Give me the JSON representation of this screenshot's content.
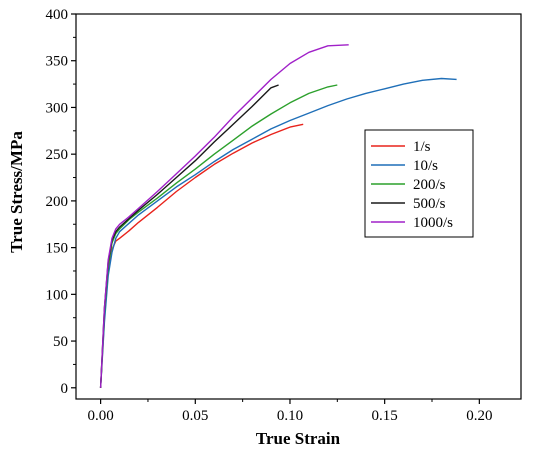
{
  "chart_data": {
    "type": "line",
    "xlabel": "True Strain",
    "ylabel": "True Stress/MPa",
    "xlim": [
      -0.013,
      0.222
    ],
    "ylim": [
      -12,
      400
    ],
    "xticks": [
      0.0,
      0.05,
      0.1,
      0.15,
      0.2
    ],
    "xtick_labels": [
      "0.00",
      "0.05",
      "0.10",
      "0.15",
      "0.20"
    ],
    "yticks": [
      0,
      50,
      100,
      150,
      200,
      250,
      300,
      350,
      400
    ],
    "ytick_labels": [
      "0",
      "50",
      "100",
      "150",
      "200",
      "250",
      "300",
      "350",
      "400"
    ],
    "grid": false,
    "legend_position": "right",
    "series": [
      {
        "name": "1/s",
        "color": "#e8231c",
        "x": [
          0.0,
          0.002,
          0.004,
          0.006,
          0.008,
          0.01,
          0.015,
          0.02,
          0.03,
          0.04,
          0.05,
          0.06,
          0.07,
          0.08,
          0.09,
          0.1,
          0.107
        ],
        "y": [
          0,
          75,
          125,
          148,
          157,
          160,
          168,
          177,
          193,
          210,
          225,
          239,
          251,
          262,
          271,
          279,
          282
        ]
      },
      {
        "name": "10/s",
        "color": "#1f6fb8",
        "x": [
          0.0,
          0.002,
          0.004,
          0.006,
          0.008,
          0.01,
          0.015,
          0.02,
          0.03,
          0.04,
          0.05,
          0.06,
          0.07,
          0.08,
          0.09,
          0.1,
          0.11,
          0.12,
          0.13,
          0.14,
          0.15,
          0.16,
          0.17,
          0.18,
          0.188
        ],
        "y": [
          0,
          70,
          120,
          145,
          160,
          167,
          176,
          185,
          200,
          215,
          228,
          242,
          255,
          266,
          277,
          286,
          294,
          302,
          309,
          315,
          320,
          325,
          329,
          331,
          330
        ]
      },
      {
        "name": "200/s",
        "color": "#2ca02c",
        "x": [
          0.0,
          0.002,
          0.004,
          0.006,
          0.008,
          0.01,
          0.015,
          0.02,
          0.03,
          0.04,
          0.05,
          0.06,
          0.07,
          0.08,
          0.09,
          0.1,
          0.11,
          0.12,
          0.125
        ],
        "y": [
          0,
          80,
          130,
          155,
          165,
          170,
          180,
          188,
          203,
          219,
          234,
          250,
          265,
          280,
          293,
          305,
          315,
          322,
          324
        ]
      },
      {
        "name": "500/s",
        "color": "#1a1a1a",
        "x": [
          0.0,
          0.002,
          0.004,
          0.006,
          0.008,
          0.01,
          0.015,
          0.02,
          0.03,
          0.04,
          0.05,
          0.06,
          0.07,
          0.08,
          0.09,
          0.094
        ],
        "y": [
          0,
          85,
          135,
          158,
          167,
          172,
          181,
          190,
          207,
          225,
          243,
          263,
          282,
          301,
          321,
          324
        ]
      },
      {
        "name": "1000/s",
        "color": "#a020c8",
        "x": [
          0.0,
          0.002,
          0.004,
          0.006,
          0.008,
          0.01,
          0.015,
          0.02,
          0.03,
          0.04,
          0.05,
          0.06,
          0.07,
          0.08,
          0.09,
          0.1,
          0.11,
          0.12,
          0.131
        ],
        "y": [
          0,
          85,
          137,
          160,
          170,
          175,
          183,
          192,
          210,
          229,
          248,
          268,
          290,
          310,
          330,
          347,
          359,
          366,
          367
        ]
      }
    ]
  }
}
